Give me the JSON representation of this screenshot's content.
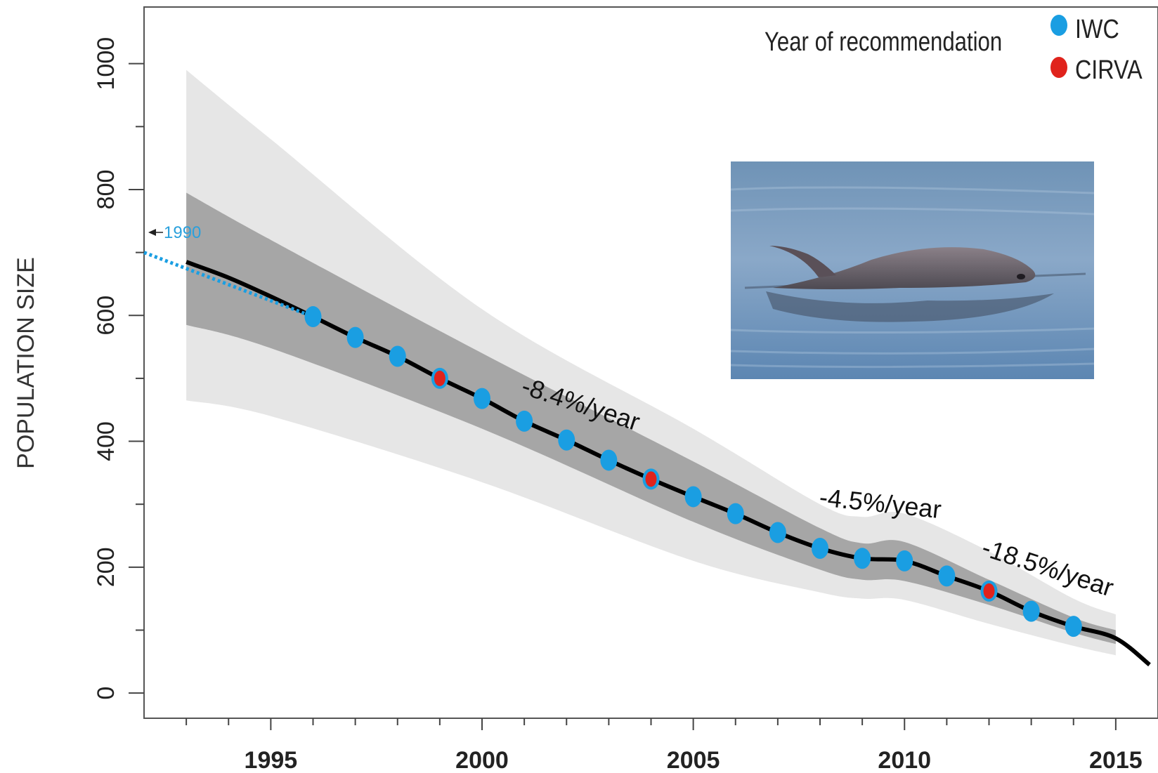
{
  "chart_data": {
    "type": "line",
    "title": "",
    "xlabel": "",
    "ylabel": "POPULATION SIZE",
    "xlim": [
      1992,
      2016
    ],
    "ylim": [
      -40,
      1090
    ],
    "x_ticks": [
      1995,
      2000,
      2005,
      2010,
      2015
    ],
    "y_ticks": [
      0,
      200,
      400,
      600,
      800,
      1000
    ],
    "colors": {
      "iwc": "#1a9ee2",
      "cirva": "#e0231c",
      "trend_line": "#000000",
      "dotted_line": "#1a9ee2",
      "outer_band": "#e6e6e6",
      "inner_band": "#a6a6a6"
    },
    "trend": {
      "x": [
        1993,
        1994,
        1995,
        1996,
        1997,
        1998,
        1999,
        2000,
        2001,
        2002,
        2003,
        2004,
        2005,
        2006,
        2007,
        2008,
        2009,
        2010,
        2011,
        2012,
        2013,
        2014,
        2015,
        2015.8
      ],
      "y": [
        685,
        660,
        630,
        598,
        565,
        535,
        500,
        468,
        432,
        402,
        370,
        340,
        312,
        285,
        255,
        230,
        214,
        210,
        186,
        162,
        130,
        106,
        87,
        45
      ]
    },
    "dotted_projection": {
      "x": [
        1992,
        1996
      ],
      "y": [
        700,
        598
      ]
    },
    "inner_band": {
      "x": [
        1993,
        1995,
        2000,
        2005,
        2008,
        2009,
        2010,
        2012,
        2014,
        2015
      ],
      "upper": [
        795,
        720,
        540,
        368,
        262,
        238,
        240,
        180,
        120,
        100
      ],
      "lower": [
        585,
        548,
        420,
        272,
        196,
        180,
        178,
        140,
        96,
        78
      ]
    },
    "outer_band": {
      "x": [
        1993,
        1995,
        2000,
        2005,
        2008,
        2009,
        2010,
        2012,
        2014,
        2015
      ],
      "upper": [
        990,
        880,
        610,
        420,
        300,
        280,
        285,
        225,
        150,
        125
      ],
      "lower": [
        465,
        440,
        335,
        210,
        160,
        150,
        148,
        110,
        75,
        60
      ]
    },
    "series": [
      {
        "name": "IWC",
        "points": [
          {
            "x": 1996,
            "y": 598
          },
          {
            "x": 1997,
            "y": 565
          },
          {
            "x": 1998,
            "y": 535
          },
          {
            "x": 2000,
            "y": 468
          },
          {
            "x": 2001,
            "y": 432
          },
          {
            "x": 2002,
            "y": 402
          },
          {
            "x": 2003,
            "y": 370
          },
          {
            "x": 2005,
            "y": 312
          },
          {
            "x": 2006,
            "y": 285
          },
          {
            "x": 2007,
            "y": 255
          },
          {
            "x": 2008,
            "y": 230
          },
          {
            "x": 2009,
            "y": 214
          },
          {
            "x": 2010,
            "y": 210
          },
          {
            "x": 2011,
            "y": 186
          },
          {
            "x": 2013,
            "y": 130
          },
          {
            "x": 2014,
            "y": 106
          }
        ]
      },
      {
        "name": "CIRVA",
        "points": [
          {
            "x": 1999,
            "y": 500
          },
          {
            "x": 2004,
            "y": 340
          },
          {
            "x": 2012,
            "y": 162
          }
        ]
      }
    ],
    "legend": {
      "title": "Year of recommendation",
      "placement": "top-right",
      "entries": [
        "IWC",
        "CIRVA"
      ]
    },
    "annotations": [
      {
        "text": "-8.4%/year",
        "x": 2001.5,
        "y": 470
      },
      {
        "text": "-4.5%/year",
        "x": 2009.5,
        "y": 275
      },
      {
        "text": "-18.5%/year",
        "x": 2013.0,
        "y": 195
      },
      {
        "text": "1990",
        "x": 1992.4,
        "y": 730
      }
    ],
    "inset_photo": {
      "icon": "vaquita-porpoise-photo"
    }
  }
}
